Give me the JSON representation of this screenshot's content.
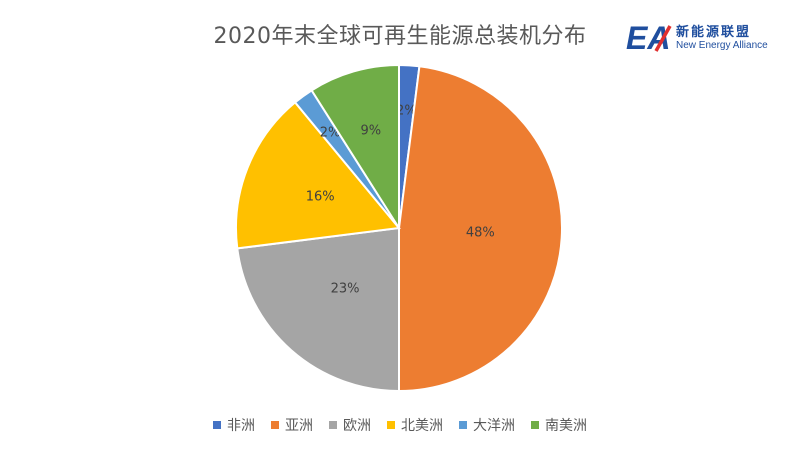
{
  "chart_data": {
    "type": "pie",
    "title": "2020年末全球可再生能源总装机分布",
    "categories": [
      "非洲",
      "亚洲",
      "欧洲",
      "北美洲",
      "大洋洲",
      "南美洲"
    ],
    "values": [
      2,
      48,
      23,
      16,
      2,
      9
    ],
    "labels": [
      "2%",
      "48%",
      "23%",
      "16%",
      "2%",
      "9%"
    ],
    "colors": [
      "#4472c4",
      "#ed7d31",
      "#a5a5a5",
      "#ffc000",
      "#5b9bd5",
      "#70ad47"
    ],
    "legend_position": "bottom"
  },
  "logo": {
    "mark": "EA",
    "name": "新能源联盟",
    "english": "New Energy Alliance"
  }
}
